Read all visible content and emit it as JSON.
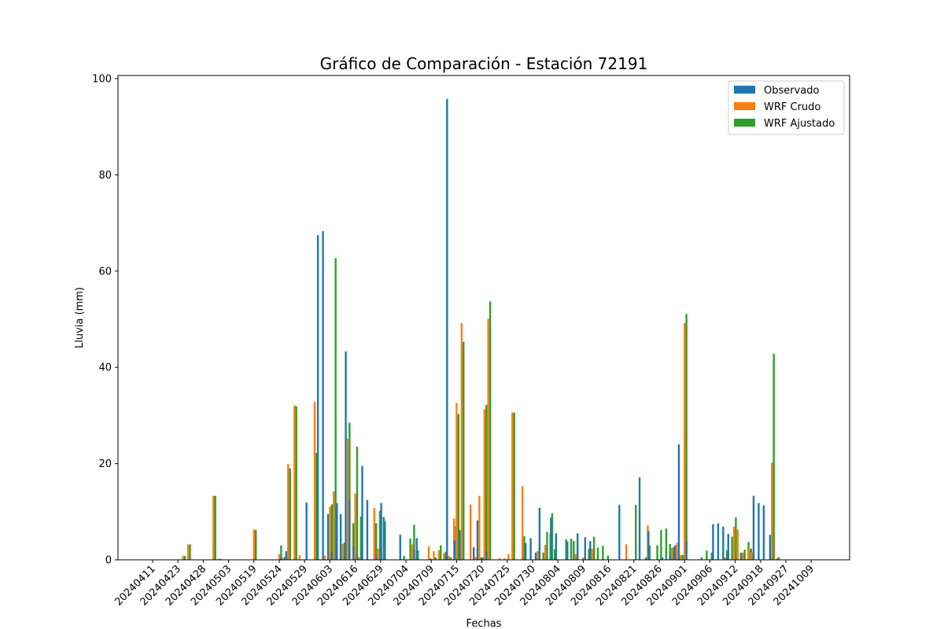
{
  "chart_data": {
    "type": "bar",
    "title": "Gráfico de Comparación - Estación 72191",
    "xlabel": "Fechas",
    "ylabel": "Lluvia (mm)",
    "ylim": [
      0,
      100
    ],
    "yticks": [
      0,
      20,
      40,
      60,
      80,
      100
    ],
    "legend_position": "top-right",
    "categories": [
      "20240411",
      "20240423",
      "20240428",
      "20240503",
      "20240519",
      "20240524",
      "20240529",
      "20240603",
      "20240616",
      "20240629",
      "20240704",
      "20240709",
      "20240715",
      "20240720",
      "20240725",
      "20240730",
      "20240804",
      "20240809",
      "20240816",
      "20240821",
      "20240826",
      "20240901",
      "20240906",
      "20240912",
      "20240918",
      "20240927",
      "20241009"
    ],
    "points": [
      {
        "pos": 1.0,
        "obs": 0,
        "crudo": 0,
        "ajust": 0
      },
      {
        "pos": 2.0,
        "obs": 0,
        "crudo": 0,
        "ajust": 0
      },
      {
        "pos": 2.2,
        "obs": 0,
        "crudo": 0.8,
        "ajust": 0.8
      },
      {
        "pos": 2.4,
        "obs": 0,
        "crudo": 3.2,
        "ajust": 3.2
      },
      {
        "pos": 3.4,
        "obs": 0,
        "crudo": 13.3,
        "ajust": 13.3
      },
      {
        "pos": 3.6,
        "obs": 0,
        "crudo": 0.2,
        "ajust": 0.2
      },
      {
        "pos": 5.0,
        "obs": 0,
        "crudo": 6.3,
        "ajust": 6.2
      },
      {
        "pos": 6.0,
        "obs": 0,
        "crudo": 1.2,
        "ajust": 3.0
      },
      {
        "pos": 6.15,
        "obs": 0.5,
        "crudo": 0.4,
        "ajust": 0.6
      },
      {
        "pos": 6.35,
        "obs": 1.8,
        "crudo": 19.9,
        "ajust": 19.0
      },
      {
        "pos": 6.6,
        "obs": 0,
        "crudo": 32.1,
        "ajust": 31.9
      },
      {
        "pos": 6.8,
        "obs": 0,
        "crudo": 1.0,
        "ajust": 0
      },
      {
        "pos": 7.15,
        "obs": 11.9,
        "crudo": 0,
        "ajust": 0
      },
      {
        "pos": 7.4,
        "obs": 0,
        "crudo": 32.8,
        "ajust": 22.2
      },
      {
        "pos": 7.6,
        "obs": 67.5,
        "crudo": 0,
        "ajust": 0
      },
      {
        "pos": 7.8,
        "obs": 68.3,
        "crudo": 0.9,
        "ajust": 0
      },
      {
        "pos": 8.0,
        "obs": 9.5,
        "crudo": 11.0,
        "ajust": 11.5
      },
      {
        "pos": 8.15,
        "obs": 1.8,
        "crudo": 14.2,
        "ajust": 62.7
      },
      {
        "pos": 8.35,
        "obs": 11.8,
        "crudo": 0,
        "ajust": 3.1
      },
      {
        "pos": 8.5,
        "obs": 9.5,
        "crudo": 3.3,
        "ajust": 3.6
      },
      {
        "pos": 8.7,
        "obs": 43.3,
        "crudo": 25.2,
        "ajust": 28.5
      },
      {
        "pos": 8.85,
        "obs": 12.5,
        "crudo": 0,
        "ajust": 7.6
      },
      {
        "pos": 9.0,
        "obs": 2.8,
        "crudo": 13.8,
        "ajust": 23.5
      },
      {
        "pos": 9.15,
        "obs": 1.2,
        "crudo": 0.5,
        "ajust": 9.0
      },
      {
        "pos": 9.35,
        "obs": 19.5,
        "crudo": 0,
        "ajust": 0
      },
      {
        "pos": 9.55,
        "obs": 12.4,
        "crudo": 0,
        "ajust": 0
      },
      {
        "pos": 9.75,
        "obs": 0,
        "crudo": 10.8,
        "ajust": 7.6
      },
      {
        "pos": 9.9,
        "obs": 0.8,
        "crudo": 2.3,
        "ajust": 10.2
      },
      {
        "pos": 10.1,
        "obs": 11.8,
        "crudo": 0,
        "ajust": 8.0
      },
      {
        "pos": 10.2,
        "obs": 8.9,
        "crudo": 0,
        "ajust": 0
      },
      {
        "pos": 10.85,
        "obs": 5.2,
        "crudo": 0,
        "ajust": 0.8
      },
      {
        "pos": 11.1,
        "obs": 0,
        "crudo": 0,
        "ajust": 4.4
      },
      {
        "pos": 11.25,
        "obs": 0,
        "crudo": 3.2,
        "ajust": 7.3
      },
      {
        "pos": 11.4,
        "obs": 2.0,
        "crudo": 0,
        "ajust": 2.0
      },
      {
        "pos": 11.5,
        "obs": 4.5,
        "crudo": 0,
        "ajust": 0
      },
      {
        "pos": 11.9,
        "obs": 0,
        "crudo": 2.8,
        "ajust": 0.3
      },
      {
        "pos": 12.1,
        "obs": 0,
        "crudo": 1.8,
        "ajust": 0.5
      },
      {
        "pos": 12.3,
        "obs": 0,
        "crudo": 2.0,
        "ajust": 3.0
      },
      {
        "pos": 12.5,
        "obs": 0,
        "crudo": 1.4,
        "ajust": 1.7
      },
      {
        "pos": 12.7,
        "obs": 95.8,
        "crudo": 0.8,
        "ajust": 0.5
      },
      {
        "pos": 12.9,
        "obs": 0,
        "crudo": 8.6,
        "ajust": 7.0
      },
      {
        "pos": 13.0,
        "obs": 4.0,
        "crudo": 32.6,
        "ajust": 30.3
      },
      {
        "pos": 13.2,
        "obs": 6.2,
        "crudo": 49.2,
        "ajust": 45.3
      },
      {
        "pos": 13.55,
        "obs": 0,
        "crudo": 11.5,
        "ajust": 0
      },
      {
        "pos": 13.75,
        "obs": 2.6,
        "crudo": 0.6,
        "ajust": 0
      },
      {
        "pos": 13.9,
        "obs": 8.2,
        "crudo": 13.3,
        "ajust": 0.5
      },
      {
        "pos": 14.1,
        "obs": 0.5,
        "crudo": 31.3,
        "ajust": 32.2
      },
      {
        "pos": 14.25,
        "obs": 1.8,
        "crudo": 50.1,
        "ajust": 53.7
      },
      {
        "pos": 14.7,
        "obs": 0,
        "crudo": 0.3,
        "ajust": 0
      },
      {
        "pos": 14.9,
        "obs": 0,
        "crudo": 0.3,
        "ajust": 0
      },
      {
        "pos": 15.05,
        "obs": 0,
        "crudo": 1.2,
        "ajust": 0
      },
      {
        "pos": 15.2,
        "obs": 0,
        "crudo": 30.6,
        "ajust": 30.6
      },
      {
        "pos": 15.6,
        "obs": 0,
        "crudo": 15.3,
        "ajust": 4.9
      },
      {
        "pos": 15.8,
        "obs": 3.5,
        "crudo": 0,
        "ajust": 0
      },
      {
        "pos": 16.0,
        "obs": 4.5,
        "crudo": 0,
        "ajust": 0
      },
      {
        "pos": 16.2,
        "obs": 1.5,
        "crudo": 1.8,
        "ajust": 2.2
      },
      {
        "pos": 16.35,
        "obs": 10.8,
        "crudo": 0,
        "ajust": 1.5
      },
      {
        "pos": 16.5,
        "obs": 0,
        "crudo": 3.1,
        "ajust": 5.8
      },
      {
        "pos": 16.7,
        "obs": 0,
        "crudo": 5.5,
        "ajust": 9.7
      },
      {
        "pos": 16.8,
        "obs": 8.8,
        "crudo": 0,
        "ajust": 2.2
      },
      {
        "pos": 17.0,
        "obs": 5.5,
        "crudo": 0,
        "ajust": 0
      },
      {
        "pos": 17.25,
        "obs": 0,
        "crudo": 0,
        "ajust": 4.3
      },
      {
        "pos": 17.45,
        "obs": 3.8,
        "crudo": 0,
        "ajust": 4.4
      },
      {
        "pos": 17.55,
        "obs": 0,
        "crudo": 0,
        "ajust": 3.9
      },
      {
        "pos": 17.7,
        "obs": 0,
        "crudo": 1.2,
        "ajust": 2.0
      },
      {
        "pos": 17.85,
        "obs": 5.5,
        "crudo": 0,
        "ajust": 0
      },
      {
        "pos": 18.0,
        "obs": 0,
        "crudo": 0.5,
        "ajust": 0.3
      },
      {
        "pos": 18.15,
        "obs": 4.7,
        "crudo": 0,
        "ajust": 2.3
      },
      {
        "pos": 18.35,
        "obs": 3.9,
        "crudo": 2.3,
        "ajust": 4.8
      },
      {
        "pos": 18.5,
        "obs": 0,
        "crudo": 0,
        "ajust": 2.5
      },
      {
        "pos": 18.7,
        "obs": 0,
        "crudo": 0,
        "ajust": 2.9
      },
      {
        "pos": 18.9,
        "obs": 0,
        "crudo": 0,
        "ajust": 0.9
      },
      {
        "pos": 19.5,
        "obs": 11.4,
        "crudo": 0,
        "ajust": 0
      },
      {
        "pos": 19.7,
        "obs": 0,
        "crudo": 3.2,
        "ajust": 0
      },
      {
        "pos": 20.0,
        "obs": 0,
        "crudo": 0,
        "ajust": 11.4
      },
      {
        "pos": 20.3,
        "obs": 17.1,
        "crudo": 0,
        "ajust": 0
      },
      {
        "pos": 20.55,
        "obs": 0.5,
        "crudo": 7.2,
        "ajust": 3.0
      },
      {
        "pos": 20.65,
        "obs": 6.0,
        "crudo": 0,
        "ajust": 0
      },
      {
        "pos": 20.85,
        "obs": 0,
        "crudo": 0,
        "ajust": 3.0
      },
      {
        "pos": 21.0,
        "obs": 0,
        "crudo": 0,
        "ajust": 6.2
      },
      {
        "pos": 21.2,
        "obs": 0.5,
        "crudo": 0,
        "ajust": 6.5
      },
      {
        "pos": 21.35,
        "obs": 0,
        "crudo": 0,
        "ajust": 3.3
      },
      {
        "pos": 21.5,
        "obs": 1.2,
        "crudo": 2.5,
        "ajust": 2.6
      },
      {
        "pos": 21.7,
        "obs": 3.0,
        "crudo": 3.5,
        "ajust": 0
      },
      {
        "pos": 21.85,
        "obs": 24.0,
        "crudo": 1.0,
        "ajust": 1.0
      },
      {
        "pos": 22.0,
        "obs": 0,
        "crudo": 49.2,
        "ajust": 51.1
      },
      {
        "pos": 22.15,
        "obs": 3.9,
        "crudo": 0,
        "ajust": 0
      },
      {
        "pos": 22.6,
        "obs": 0,
        "crudo": 0,
        "ajust": 0.5
      },
      {
        "pos": 22.8,
        "obs": 0,
        "crudo": 0,
        "ajust": 1.9
      },
      {
        "pos": 23.0,
        "obs": 0,
        "crudo": 0,
        "ajust": 1.5
      },
      {
        "pos": 23.2,
        "obs": 7.4,
        "crudo": 0,
        "ajust": 0
      },
      {
        "pos": 23.4,
        "obs": 7.6,
        "crudo": 0,
        "ajust": 0
      },
      {
        "pos": 23.6,
        "obs": 6.9,
        "crudo": 0.5,
        "ajust": 2.0
      },
      {
        "pos": 23.8,
        "obs": 5.4,
        "crudo": 0,
        "ajust": 4.8
      },
      {
        "pos": 23.95,
        "obs": 0,
        "crudo": 6.9,
        "ajust": 8.8
      },
      {
        "pos": 24.1,
        "obs": 0,
        "crudo": 6.3,
        "ajust": 0
      },
      {
        "pos": 24.3,
        "obs": 1.5,
        "crudo": 1.5,
        "ajust": 2.1
      },
      {
        "pos": 24.45,
        "obs": 0,
        "crudo": 0,
        "ajust": 3.7
      },
      {
        "pos": 24.55,
        "obs": 0,
        "crudo": 2.4,
        "ajust": 2.3
      },
      {
        "pos": 24.65,
        "obs": 0,
        "crudo": 1.5,
        "ajust": 1.8
      },
      {
        "pos": 24.8,
        "obs": 13.3,
        "crudo": 0,
        "ajust": 0
      },
      {
        "pos": 25.0,
        "obs": 11.8,
        "crudo": 0,
        "ajust": 0
      },
      {
        "pos": 25.2,
        "obs": 11.3,
        "crudo": 0,
        "ajust": 0
      },
      {
        "pos": 25.45,
        "obs": 5.2,
        "crudo": 20.2,
        "ajust": 42.8
      },
      {
        "pos": 25.65,
        "obs": 0,
        "crudo": 0.4,
        "ajust": 0.5
      }
    ],
    "series": [
      {
        "key": "obs",
        "name": "Observado",
        "color": "#1f77b4"
      },
      {
        "key": "crudo",
        "name": "WRF Crudo",
        "color": "#ff7f0e"
      },
      {
        "key": "ajust",
        "name": "WRF Ajustado",
        "color": "#2ca02c"
      }
    ]
  }
}
